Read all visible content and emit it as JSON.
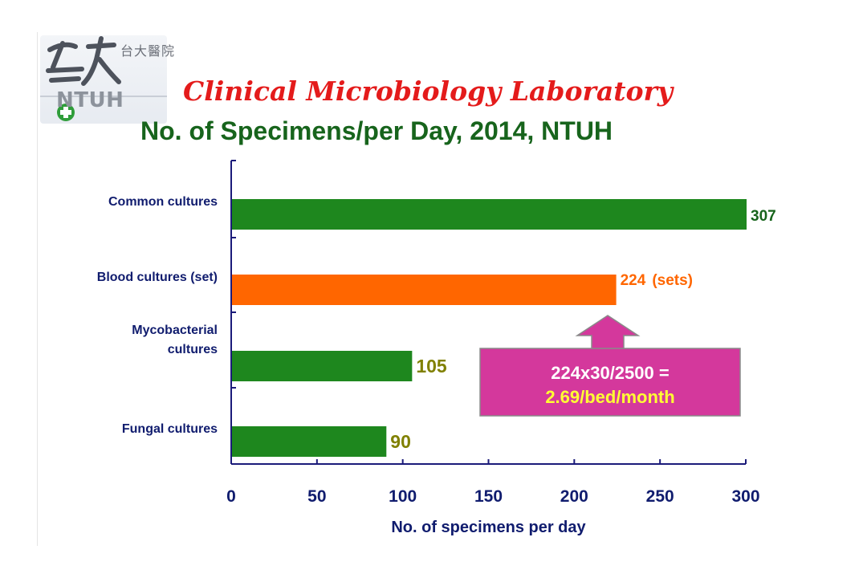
{
  "header": {
    "logo_text": "台大醫院",
    "logo_org": "NTUH",
    "title": "Clinical Microbiology Laboratory",
    "subtitle": "No. of Specimens/per Day,  2014, NTUH"
  },
  "callout": {
    "line1": "224x30/2500 =",
    "line2": "2.69/bed/month"
  },
  "colors": {
    "green": "#1e871e",
    "orange": "#ff6600",
    "olive_label": "#808000",
    "axis": "#1b1b7a",
    "callout_fill": "#d4389c"
  },
  "chart_data": {
    "type": "bar",
    "orientation": "horizontal",
    "categories": [
      "Common cultures",
      "Blood cultures (set)",
      "Mycobacterial cultures",
      "Fungal cultures"
    ],
    "category_label_lines": [
      [
        "Common cultures"
      ],
      [
        "Blood cultures (set)"
      ],
      [
        "Mycobacterial",
        "cultures"
      ],
      [
        "Fungal cultures"
      ]
    ],
    "values": [
      307,
      224,
      105,
      90
    ],
    "value_labels": [
      "307",
      "224",
      "105",
      "90"
    ],
    "value_suffixes": [
      "",
      "(sets)",
      "",
      ""
    ],
    "bar_colors": [
      "#1e871e",
      "#ff6600",
      "#1e871e",
      "#1e871e"
    ],
    "label_colors": [
      "#17641c",
      "#ff6600",
      "#808000",
      "#808000"
    ],
    "xlabel": "No. of specimens per day",
    "ylabel": "",
    "xlim": [
      0,
      300
    ],
    "xticks": [
      0,
      50,
      100,
      150,
      200,
      250,
      300
    ],
    "grid": false,
    "legend": "none"
  }
}
